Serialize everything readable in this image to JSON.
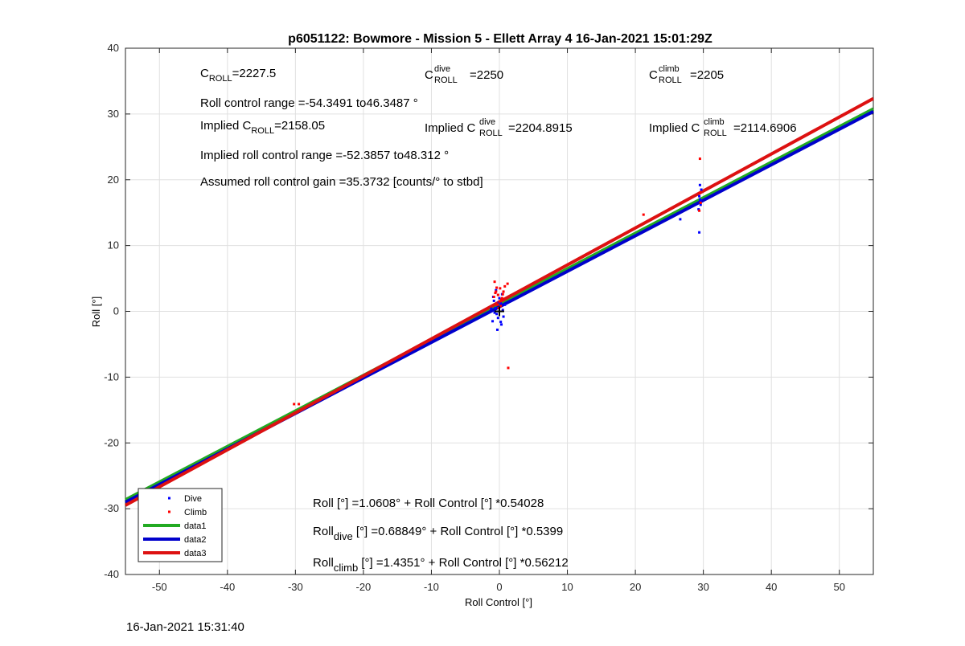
{
  "chart_data": {
    "type": "scatter",
    "title": "p6051122: Bowmore - Mission 5 - Ellett Array 4 16-Jan-2021 15:01:29Z",
    "xlabel": "Roll Control [°]",
    "ylabel": "Roll [°]",
    "xlim": [
      -55,
      55
    ],
    "ylim": [
      -40,
      40
    ],
    "xticks": [
      -50,
      -40,
      -30,
      -20,
      -10,
      0,
      10,
      20,
      30,
      40,
      50
    ],
    "yticks": [
      -40,
      -30,
      -20,
      -10,
      0,
      10,
      20,
      30,
      40
    ],
    "grid": true,
    "legend_position": "bottom-left",
    "series": [
      {
        "name": "Dive",
        "kind": "points",
        "color": "#0000ff",
        "points": [
          [
            -0.6,
            0.5
          ],
          [
            -0.4,
            -0.4
          ],
          [
            0.2,
            1.2
          ],
          [
            -0.8,
            1.6
          ],
          [
            0.5,
            0.2
          ],
          [
            -0.2,
            -1.0
          ],
          [
            0.0,
            2.0
          ],
          [
            -1.0,
            -1.5
          ],
          [
            0.3,
            -2.0
          ],
          [
            -0.5,
            3.2
          ],
          [
            0.8,
            1.0
          ],
          [
            -0.3,
            -2.8
          ],
          [
            0.1,
            0.8
          ],
          [
            -0.7,
            -0.2
          ],
          [
            0.4,
            2.6
          ],
          [
            -1.2,
            0.4
          ],
          [
            0.6,
            -0.8
          ],
          [
            -0.1,
            1.4
          ],
          [
            -0.9,
            2.2
          ],
          [
            0.2,
            -1.6
          ],
          [
            29.4,
            17.5
          ],
          [
            29.6,
            16.8
          ],
          [
            29.5,
            19.2
          ],
          [
            29.3,
            15.5
          ],
          [
            29.7,
            18.5
          ],
          [
            29.6,
            16.2
          ],
          [
            29.5,
            17.0
          ],
          [
            29.4,
            12.0
          ],
          [
            26.6,
            14.0
          ]
        ]
      },
      {
        "name": "Climb",
        "kind": "points",
        "color": "#ff0000",
        "points": [
          [
            -0.5,
            3.0
          ],
          [
            -0.2,
            2.5
          ],
          [
            0.1,
            3.5
          ],
          [
            -0.7,
            4.5
          ],
          [
            0.4,
            2.0
          ],
          [
            -0.3,
            1.0
          ],
          [
            0.6,
            3.0
          ],
          [
            -0.1,
            0.5
          ],
          [
            0.3,
            1.8
          ],
          [
            -0.6,
            2.8
          ],
          [
            0.8,
            3.8
          ],
          [
            -0.4,
            3.6
          ],
          [
            0.2,
            0.8
          ],
          [
            -0.8,
            2.2
          ],
          [
            0.5,
            2.6
          ],
          [
            0.0,
            1.5
          ],
          [
            1.2,
            4.2
          ],
          [
            1.3,
            -8.6
          ],
          [
            -30.2,
            -14.1
          ],
          [
            -29.5,
            -14.1
          ],
          [
            21.2,
            14.7
          ],
          [
            29.5,
            23.2
          ],
          [
            29.4,
            15.3
          ],
          [
            29.6,
            16.5
          ],
          [
            29.5,
            18.0
          ]
        ]
      },
      {
        "name": "data1",
        "kind": "line",
        "color": "#22aa22",
        "x": [
          -55,
          55
        ],
        "y": [
          -28.65,
          30.77
        ]
      },
      {
        "name": "data2",
        "kind": "line",
        "color": "#0000cc",
        "x": [
          -55,
          55
        ],
        "y": [
          -29.01,
          30.38
        ]
      },
      {
        "name": "data3",
        "kind": "line",
        "color": "#dd1111",
        "x": [
          -55,
          55
        ],
        "y": [
          -29.48,
          32.35
        ]
      }
    ],
    "center_marker": {
      "x": 0,
      "y": 0,
      "symbol": "+",
      "color": "#000000"
    },
    "annotations": {
      "c_roll": {
        "prefix": "C",
        "sub": "ROLL",
        "value": "=2227.5"
      },
      "c_roll_dive": {
        "prefix": "C",
        "sup": "dive",
        "sub": "ROLL",
        "value": "=2250"
      },
      "c_roll_climb": {
        "prefix": "C",
        "sup": "climb",
        "sub": "ROLL",
        "value": "=2205"
      },
      "roll_range": "Roll control range =-54.3491 to46.3487 °",
      "implied_c_roll": {
        "label": "Implied C",
        "sub": "ROLL",
        "value": "=2158.05"
      },
      "implied_c_roll_dive": {
        "label": "Implied C",
        "sup": "dive",
        "sub": "ROLL",
        "value": "=2204.8915"
      },
      "implied_c_roll_climb": {
        "label": "Implied C",
        "sup": "climb",
        "sub": "ROLL",
        "value": "=2114.6906"
      },
      "implied_range": "Implied roll control range =-52.3857 to48.312 °",
      "gain": "Assumed roll control gain =35.3732 [counts/° to stbd]",
      "fit_all": "Roll [°] =1.0608° + Roll Control [°] *0.54028",
      "fit_dive": {
        "prefix": "Roll",
        "sub": "dive",
        "rest": " [°] =0.68849° + Roll Control [°] *0.5399"
      },
      "fit_climb": {
        "prefix": "Roll",
        "sub": "climb",
        "rest": " [°] =1.4351° + Roll Control [°] *0.56212"
      }
    }
  },
  "footer": {
    "timestamp": "16-Jan-2021 15:31:40"
  }
}
